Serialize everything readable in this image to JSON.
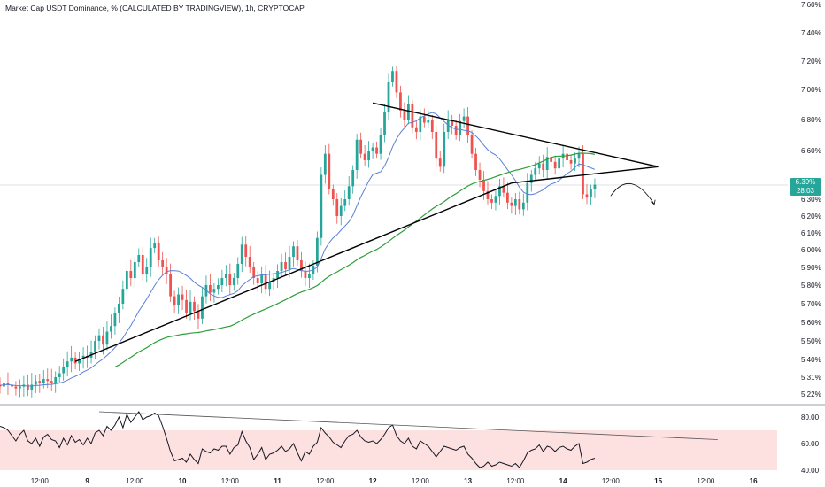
{
  "header": {
    "title": "Market Cap USDT Dominance, % (CALCULATED BY TRADINGVIEW), 1h, CRYPTOCAP"
  },
  "price_badge": {
    "price": "6.39%",
    "countdown": "28:03"
  },
  "colors": {
    "up": "#26a69a",
    "down": "#ef5350",
    "ma_fast": "#5b7fd6",
    "ma_slow": "#2e9e3a",
    "rsi_line": "#131722",
    "rsi_band": "#fde0e0"
  },
  "chart_data": [
    {
      "type": "candlestick",
      "title": "Market Cap USDT Dominance, % (CALCULATED BY TRADINGVIEW), 1h, CRYPTOCAP",
      "y_unit": "%",
      "ylim": [
        5.2,
        7.62
      ],
      "y_ticks": [
        "7.60%",
        "7.40%",
        "7.20%",
        "7.00%",
        "6.80%",
        "6.60%",
        "6.30%",
        "6.20%",
        "6.10%",
        "6.00%",
        "5.90%",
        "5.80%",
        "5.70%",
        "5.60%",
        "5.50%",
        "5.40%",
        "5.31%",
        "5.22%"
      ],
      "y_tick_values": [
        7.6,
        7.4,
        7.2,
        7.0,
        6.8,
        6.6,
        6.3,
        6.2,
        6.1,
        6.0,
        5.9,
        5.8,
        5.7,
        5.6,
        5.5,
        5.4,
        5.31,
        5.22
      ],
      "x_tick_labels": [
        "12:00",
        "9",
        "12:00",
        "10",
        "12:00",
        "11",
        "12:00",
        "12",
        "12:00",
        "13",
        "12:00",
        "14",
        "12:00",
        "15",
        "12:00",
        "16"
      ],
      "x_tick_hours": [
        12,
        24,
        36,
        48,
        60,
        72,
        84,
        96,
        108,
        120,
        132,
        144,
        156,
        168,
        180,
        192
      ],
      "x_range_hours": [
        2,
        198
      ],
      "last_price": 6.39,
      "closes": [
        5.27,
        5.26,
        5.28,
        5.27,
        5.26,
        5.25,
        5.26,
        5.27,
        5.24,
        5.27,
        5.29,
        5.28,
        5.3,
        5.29,
        5.28,
        5.31,
        5.33,
        5.36,
        5.39,
        5.41,
        5.38,
        5.4,
        5.42,
        5.41,
        5.44,
        5.5,
        5.53,
        5.48,
        5.55,
        5.58,
        5.65,
        5.7,
        5.78,
        5.88,
        5.84,
        5.93,
        5.97,
        5.86,
        5.9,
        6.01,
        6.04,
        5.94,
        5.9,
        5.86,
        5.74,
        5.69,
        5.75,
        5.72,
        5.65,
        5.71,
        5.66,
        5.62,
        5.74,
        5.8,
        5.76,
        5.78,
        5.8,
        5.84,
        5.86,
        5.8,
        5.84,
        5.92,
        6.03,
        5.96,
        5.9,
        5.84,
        5.81,
        5.86,
        5.78,
        5.82,
        5.84,
        5.88,
        5.93,
        5.89,
        5.96,
        6.02,
        5.94,
        5.88,
        5.84,
        5.86,
        5.91,
        6.07,
        6.45,
        6.58,
        6.36,
        6.3,
        6.2,
        6.26,
        6.3,
        6.38,
        6.48,
        6.67,
        6.58,
        6.54,
        6.6,
        6.62,
        6.58,
        6.7,
        6.85,
        7.05,
        7.13,
        6.98,
        6.86,
        6.8,
        6.9,
        6.75,
        6.72,
        6.82,
        6.78,
        6.8,
        6.72,
        6.55,
        6.5,
        6.72,
        6.8,
        6.76,
        6.7,
        6.79,
        6.82,
        6.7,
        6.58,
        6.48,
        6.42,
        6.35,
        6.3,
        6.28,
        6.32,
        6.38,
        6.34,
        6.28,
        6.26,
        6.3,
        6.24,
        6.28,
        6.4,
        6.45,
        6.49,
        6.52,
        6.48,
        6.56,
        6.53,
        6.49,
        6.55,
        6.58,
        6.54,
        6.52,
        6.55,
        6.58,
        6.33,
        6.31,
        6.36,
        6.39
      ],
      "series": [
        {
          "name": "",
          "kind": "sma_fast"
        },
        {
          "name": "",
          "kind": "sma_slow"
        }
      ],
      "annotations": [
        {
          "kind": "trendline",
          "from": [
            21,
            5.39
          ],
          "to": [
            131,
            6.4
          ]
        },
        {
          "kind": "trendline",
          "from": [
            96,
            6.91
          ],
          "to": [
            168,
            6.5
          ]
        },
        {
          "kind": "trendline",
          "from": [
            131,
            6.4
          ],
          "to": [
            168,
            6.5
          ]
        },
        {
          "kind": "arrow",
          "points": [
            [
              156,
              6.32
            ],
            [
              161,
              6.43
            ],
            [
              167,
              6.27
            ]
          ]
        }
      ]
    },
    {
      "type": "line",
      "title": "",
      "ylim": [
        34,
        86
      ],
      "y_ticks": [
        "80.00",
        "60.00",
        "40.00"
      ],
      "y_tick_values": [
        80,
        60,
        40
      ],
      "band": [
        40,
        70
      ],
      "values": [
        72,
        73,
        72,
        70,
        66,
        62,
        67,
        70,
        62,
        60,
        64,
        58,
        65,
        67,
        63,
        62,
        57,
        64,
        59,
        66,
        61,
        63,
        59,
        64,
        60,
        68,
        70,
        66,
        73,
        70,
        74,
        80,
        72,
        82,
        76,
        80,
        84,
        78,
        80,
        81,
        83,
        81,
        73,
        64,
        54,
        47,
        48,
        49,
        46,
        52,
        48,
        45,
        56,
        54,
        53,
        56,
        55,
        58,
        58,
        52,
        57,
        59,
        69,
        62,
        57,
        48,
        52,
        57,
        48,
        52,
        53,
        55,
        58,
        54,
        56,
        60,
        53,
        47,
        54,
        52,
        58,
        61,
        72,
        68,
        65,
        61,
        59,
        57,
        62,
        66,
        67,
        70,
        65,
        62,
        61,
        62,
        60,
        63,
        67,
        72,
        74,
        66,
        62,
        60,
        64,
        58,
        56,
        62,
        60,
        58,
        54,
        50,
        54,
        58,
        57,
        56,
        55,
        57,
        58,
        52,
        49,
        45,
        42,
        43,
        46,
        43,
        44,
        46,
        45,
        44,
        43,
        45,
        42,
        47,
        53,
        55,
        56,
        59,
        54,
        58,
        57,
        54,
        57,
        58,
        56,
        55,
        58,
        60,
        45,
        46,
        48,
        49
      ],
      "annotations": [
        {
          "kind": "trendline",
          "from": [
            27,
            84
          ],
          "to": [
            183,
            63
          ]
        }
      ]
    }
  ]
}
